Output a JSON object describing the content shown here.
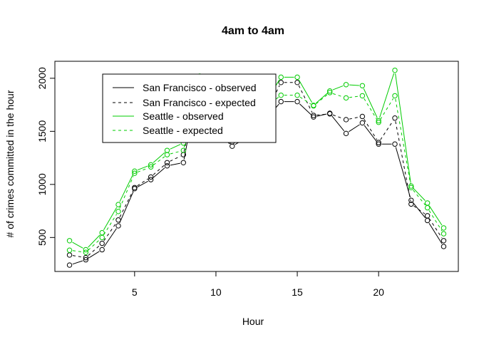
{
  "chart_data": {
    "type": "line",
    "title": "4am to 4am",
    "xlabel": "Hour",
    "ylabel": "# of crimes committed in the hour",
    "xlim": [
      0.1,
      24.9
    ],
    "ylim": [
      180,
      2160
    ],
    "xticks": [
      5,
      10,
      15,
      20
    ],
    "yticks": [
      500,
      1000,
      1500,
      2000
    ],
    "x": [
      1,
      2,
      3,
      4,
      5,
      6,
      7,
      8,
      9,
      10,
      11,
      12,
      13,
      14,
      15,
      16,
      17,
      18,
      19,
      20,
      21,
      22,
      23,
      24
    ],
    "series": [
      {
        "name": "San Francisco - observed",
        "color": "#000000",
        "dashed": false,
        "values": [
          240,
          290,
          385,
          610,
          960,
          1045,
          1175,
          1205,
          2010,
          1500,
          1360,
          1450,
          1600,
          1780,
          1780,
          1635,
          1670,
          1480,
          1580,
          1380,
          1380,
          850,
          660,
          415
        ]
      },
      {
        "name": "San Francisco - expected",
        "color": "#000000",
        "dashed": true,
        "values": [
          335,
          310,
          445,
          665,
          970,
          1070,
          1205,
          1280,
          2000,
          1520,
          1400,
          1480,
          1650,
          1960,
          1960,
          1650,
          1665,
          1610,
          1640,
          1395,
          1625,
          815,
          705,
          470
        ]
      },
      {
        "name": "Seattle - observed",
        "color": "#00cc00",
        "dashed": false,
        "values": [
          470,
          385,
          545,
          810,
          1125,
          1185,
          1320,
          1390,
          2020,
          1580,
          1460,
          1560,
          1760,
          2010,
          2010,
          1745,
          1880,
          1940,
          1930,
          1600,
          2075,
          985,
          825,
          590
        ]
      },
      {
        "name": "Seattle - expected",
        "color": "#00cc00",
        "dashed": true,
        "values": [
          380,
          360,
          500,
          745,
          1105,
          1165,
          1280,
          1320,
          2015,
          1550,
          1420,
          1520,
          1720,
          1840,
          1840,
          1740,
          1865,
          1815,
          1835,
          1585,
          1835,
          970,
          780,
          535
        ]
      }
    ],
    "legend": {
      "position": "top-left",
      "entries": [
        "San Francisco - observed",
        "San Francisco - expected",
        "Seattle - observed",
        "Seattle - expected"
      ]
    }
  }
}
